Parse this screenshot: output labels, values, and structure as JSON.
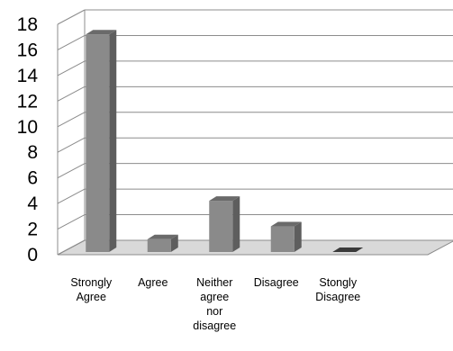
{
  "chart_data": {
    "type": "bar",
    "title": "",
    "xlabel": "",
    "ylabel": "",
    "categories": [
      [
        "Strongly",
        "Agree"
      ],
      [
        "Agree"
      ],
      [
        "Neither",
        "agree",
        "nor",
        "disagree"
      ],
      [
        "Disagree"
      ],
      [
        "Stongly",
        "Disagree"
      ]
    ],
    "values": [
      17,
      1,
      4,
      2,
      0
    ],
    "ylim": [
      0,
      18
    ],
    "yticks": [
      0,
      2,
      4,
      6,
      8,
      10,
      12,
      14,
      16,
      18
    ],
    "grid": true,
    "legend": "none",
    "style": "3d",
    "colors": {
      "bar_front": "#8a8a8a",
      "bar_side": "#5e5e5e",
      "bar_top": "#6a6a6a",
      "gridline": "#8c8c8c",
      "floor": "#d9d9d9"
    }
  }
}
